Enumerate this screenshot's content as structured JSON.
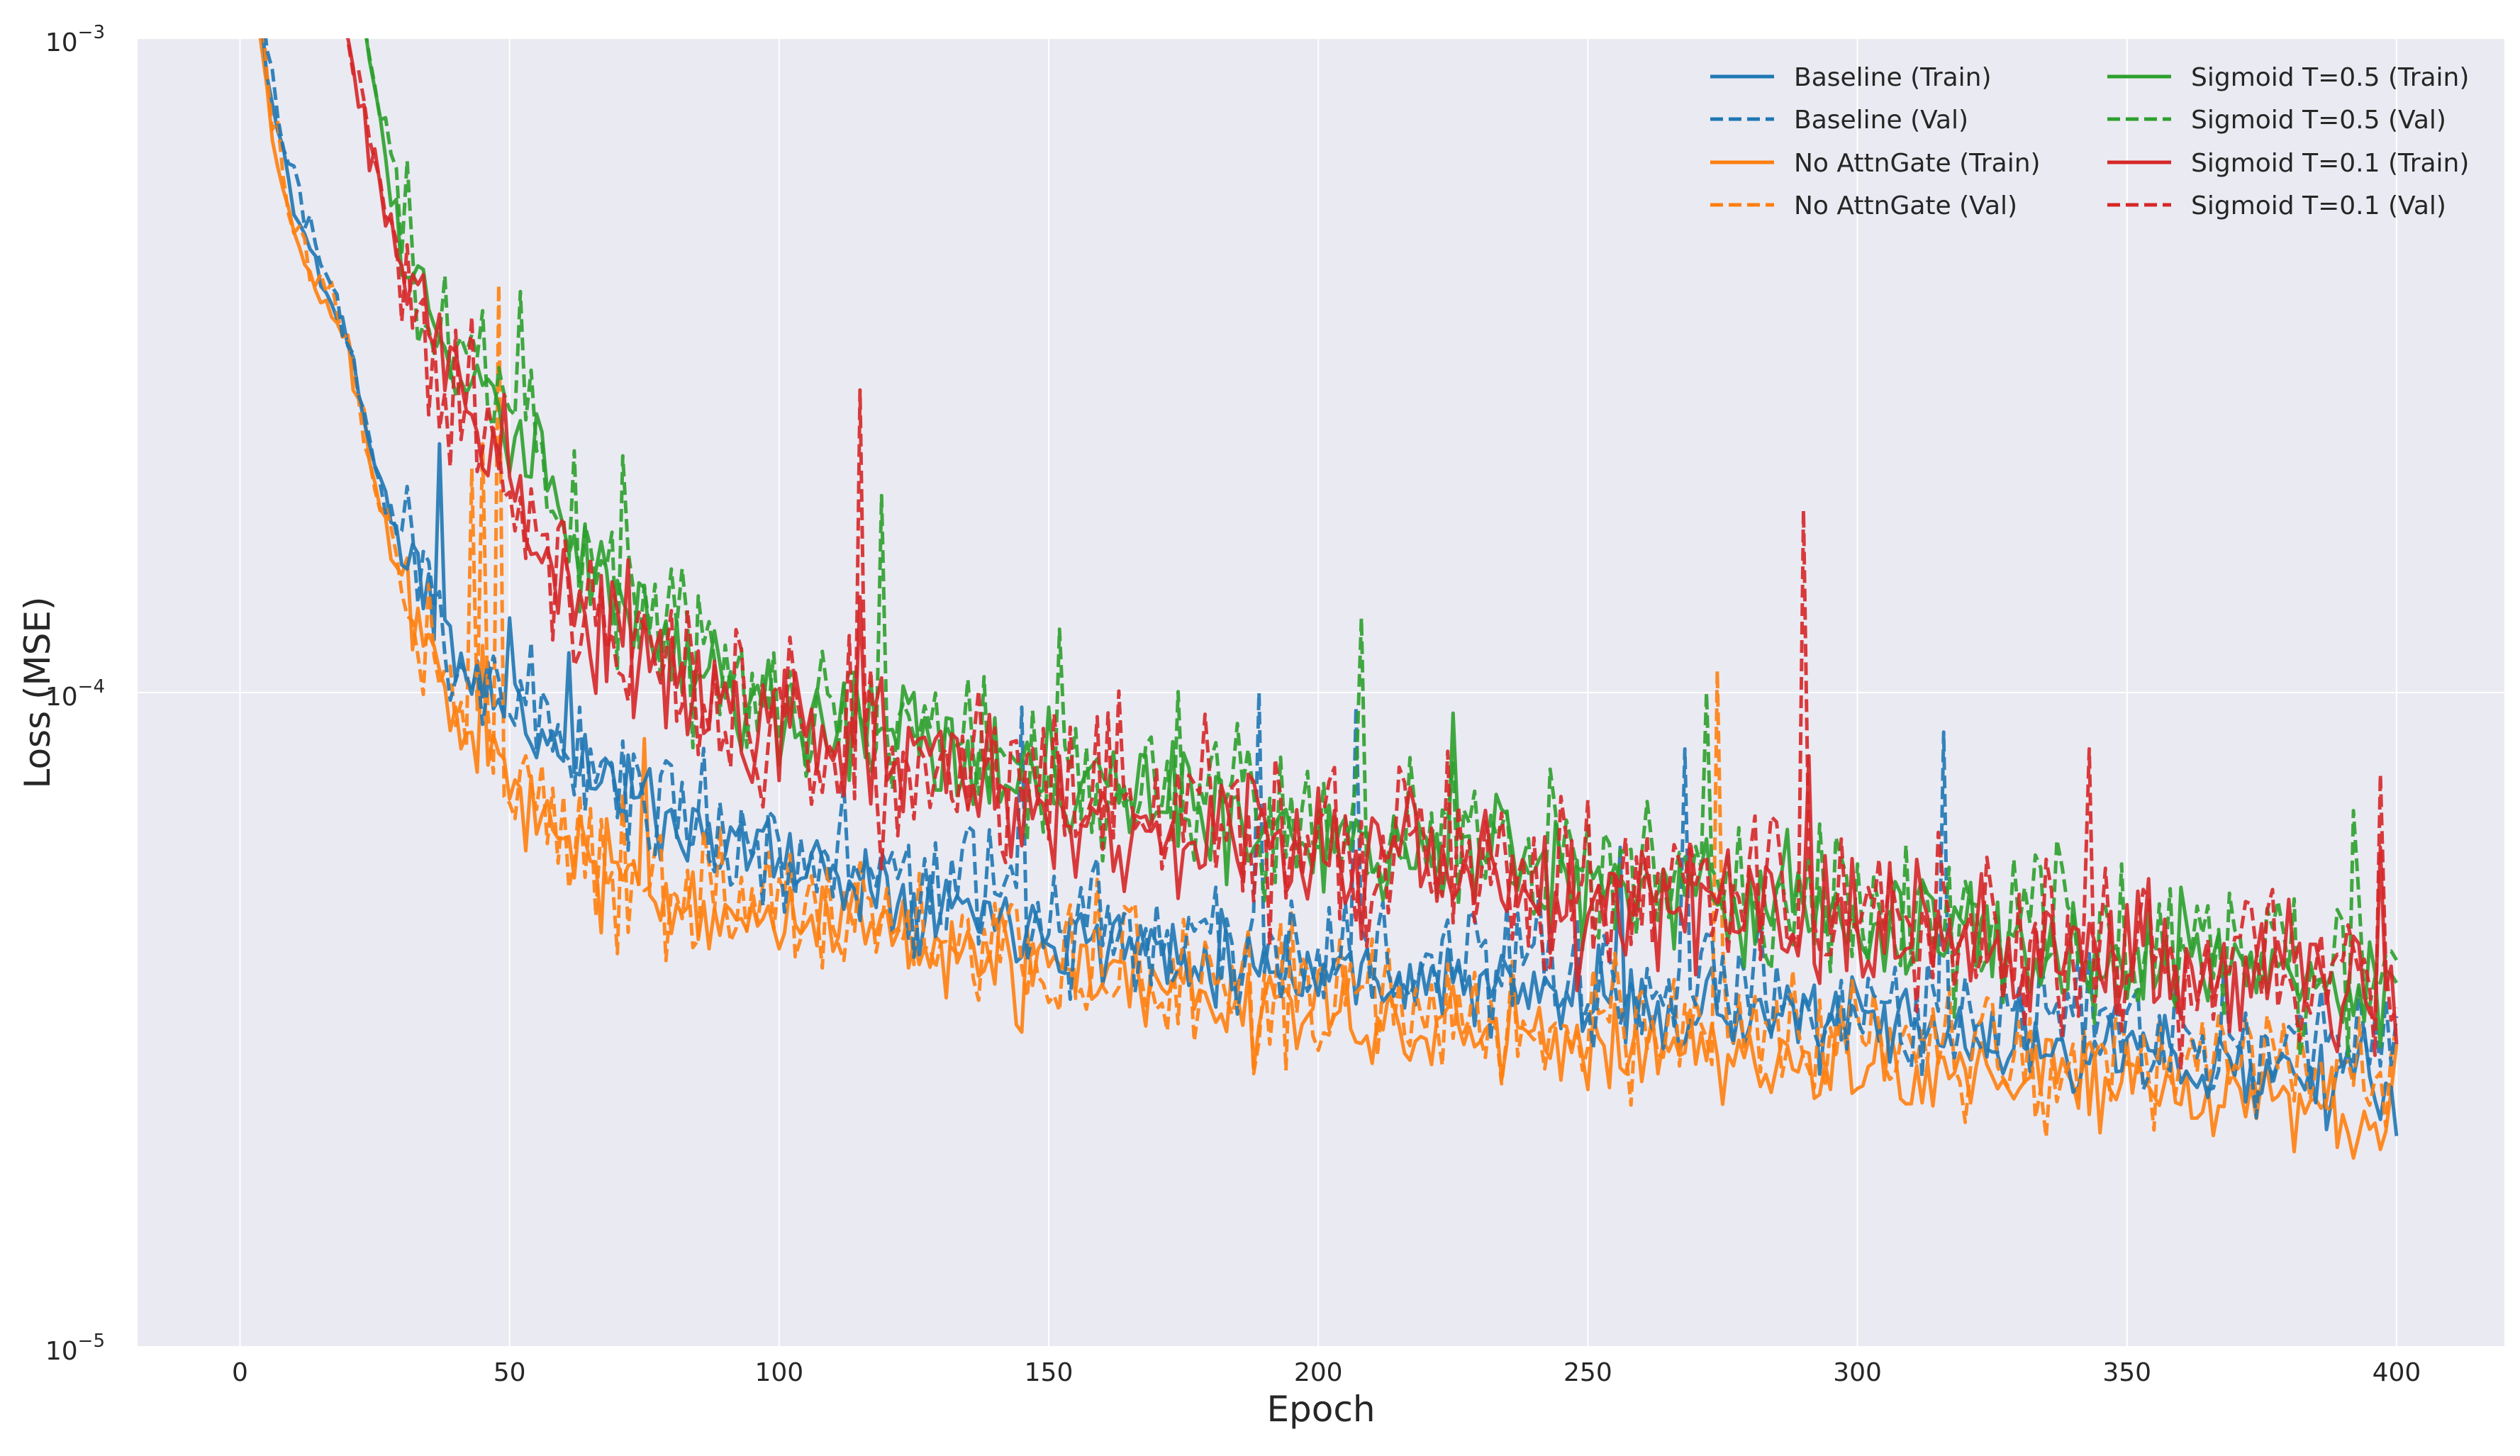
{
  "chart_data": {
    "type": "line",
    "title": "",
    "xlabel": "Epoch",
    "ylabel": "Loss (MSE)",
    "xlim": [
      -19,
      420
    ],
    "ylim": [
      1e-05,
      0.001
    ],
    "yscale": "log",
    "x_ticks": [
      0,
      50,
      100,
      150,
      200,
      250,
      300,
      350,
      400
    ],
    "y_ticks": [
      {
        "value": 1e-05,
        "base": "10",
        "exp": "−5"
      },
      {
        "value": 0.0001,
        "base": "10",
        "exp": "−4"
      },
      {
        "value": 0.001,
        "base": "10",
        "exp": "−3"
      }
    ],
    "grid": true,
    "legend": {
      "position": "top-right",
      "columns": 2
    },
    "background": "#eaeaf2",
    "series": [
      {
        "name": "Baseline (Train)",
        "color": "#1f77b4",
        "linestyle": "solid",
        "epochs": [
          0,
          400
        ],
        "anchors": [
          [
            0,
            0.0025
          ],
          [
            3,
            0.0012
          ],
          [
            6,
            0.0008
          ],
          [
            10,
            0.00055
          ],
          [
            15,
            0.00043
          ],
          [
            20,
            0.00035
          ],
          [
            25,
            0.00022
          ],
          [
            30,
            0.00017
          ],
          [
            35,
            0.000135
          ],
          [
            40,
            0.000112
          ],
          [
            50,
            9.5e-05
          ],
          [
            60,
            8.2e-05
          ],
          [
            70,
            7.2e-05
          ],
          [
            80,
            6.4e-05
          ],
          [
            100,
            5.6e-05
          ],
          [
            130,
            4.8e-05
          ],
          [
            160,
            4.2e-05
          ],
          [
            200,
            3.8e-05
          ],
          [
            250,
            3.4e-05
          ],
          [
            300,
            3.1e-05
          ],
          [
            350,
            2.8e-05
          ],
          [
            400,
            2.5e-05
          ]
        ],
        "noise": 0.06,
        "seed": 11,
        "spikes": [
          [
            37,
            0.00024
          ],
          [
            50,
            0.00013
          ],
          [
            61,
            0.000115
          ],
          [
            256,
            5.8e-05
          ]
        ],
        "end": 2.1e-05
      },
      {
        "name": "Baseline (Val)",
        "color": "#1f77b4",
        "linestyle": "dashed",
        "epochs": [
          0,
          400
        ],
        "anchors": [
          [
            0,
            0.0025
          ],
          [
            3,
            0.0013
          ],
          [
            6,
            0.00085
          ],
          [
            10,
            0.00058
          ],
          [
            15,
            0.00045
          ],
          [
            20,
            0.00036
          ],
          [
            25,
            0.00022
          ],
          [
            30,
            0.00017
          ],
          [
            35,
            0.00014
          ],
          [
            40,
            0.000115
          ],
          [
            50,
            0.0001
          ],
          [
            60,
            8.5e-05
          ],
          [
            70,
            7.4e-05
          ],
          [
            80,
            6.6e-05
          ],
          [
            100,
            5.8e-05
          ],
          [
            130,
            5e-05
          ],
          [
            160,
            4.4e-05
          ],
          [
            200,
            4e-05
          ],
          [
            250,
            3.6e-05
          ],
          [
            300,
            3.3e-05
          ],
          [
            350,
            3e-05
          ],
          [
            400,
            2.8e-05
          ]
        ],
        "noise": 0.1,
        "seed": 23,
        "spikes": [
          [
            32,
            0.000175
          ],
          [
            145,
            9.5e-05
          ],
          [
            189,
            0.0001
          ],
          [
            207,
            9.5e-05
          ],
          [
            268,
            8.2e-05
          ],
          [
            316,
            8.7e-05
          ]
        ],
        "end": 3.2e-05
      },
      {
        "name": "No AttnGate (Train)",
        "color": "#ff7f0e",
        "linestyle": "solid",
        "epochs": [
          0,
          400
        ],
        "anchors": [
          [
            0,
            0.0025
          ],
          [
            3,
            0.0011
          ],
          [
            6,
            0.0007
          ],
          [
            10,
            0.0005
          ],
          [
            15,
            0.0004
          ],
          [
            20,
            0.00034
          ],
          [
            25,
            0.00021
          ],
          [
            30,
            0.00015
          ],
          [
            35,
            0.00012
          ],
          [
            40,
            0.0001
          ],
          [
            50,
            7e-05
          ],
          [
            60,
            5.8e-05
          ],
          [
            70,
            5.2e-05
          ],
          [
            80,
            4.9e-05
          ],
          [
            100,
            4.5e-05
          ],
          [
            130,
            4e-05
          ],
          [
            160,
            3.6e-05
          ],
          [
            200,
            3.2e-05
          ],
          [
            250,
            2.9e-05
          ],
          [
            300,
            2.7e-05
          ],
          [
            350,
            2.5e-05
          ],
          [
            400,
            2.2e-05
          ]
        ],
        "noise": 0.07,
        "seed": 37,
        "spikes": [
          [
            45,
            0.000118
          ],
          [
            75,
            8.5e-05
          ]
        ],
        "end": 2.9e-05
      },
      {
        "name": "No AttnGate (Val)",
        "color": "#ff7f0e",
        "linestyle": "dashed",
        "epochs": [
          0,
          400
        ],
        "anchors": [
          [
            0,
            0.0025
          ],
          [
            3,
            0.0012
          ],
          [
            6,
            0.00075
          ],
          [
            10,
            0.00052
          ],
          [
            15,
            0.00041
          ],
          [
            20,
            0.00035
          ],
          [
            25,
            0.00021
          ],
          [
            30,
            0.00015
          ],
          [
            35,
            0.000125
          ],
          [
            40,
            0.000105
          ],
          [
            50,
            7.5e-05
          ],
          [
            60,
            6.2e-05
          ],
          [
            70,
            5.5e-05
          ],
          [
            80,
            5.1e-05
          ],
          [
            100,
            4.7e-05
          ],
          [
            130,
            4.2e-05
          ],
          [
            160,
            3.8e-05
          ],
          [
            200,
            3.4e-05
          ],
          [
            250,
            3.1e-05
          ],
          [
            300,
            2.9e-05
          ],
          [
            350,
            2.7e-05
          ],
          [
            400,
            2.5e-05
          ]
        ],
        "noise": 0.1,
        "seed": 53,
        "spikes": [
          [
            43,
            0.00022
          ],
          [
            45,
            0.00024
          ],
          [
            48,
            0.00042
          ],
          [
            274,
            0.000108
          ]
        ],
        "end": 3.1e-05
      },
      {
        "name": "Sigmoid T=0.5 (Train)",
        "color": "#2ca02c",
        "linestyle": "solid",
        "epochs": [
          20,
          400
        ],
        "anchors": [
          [
            20,
            0.0015
          ],
          [
            24,
            0.0009
          ],
          [
            28,
            0.0006
          ],
          [
            33,
            0.00042
          ],
          [
            40,
            0.00032
          ],
          [
            50,
            0.00025
          ],
          [
            60,
            0.00018
          ],
          [
            70,
            0.00014
          ],
          [
            80,
            0.00011
          ],
          [
            100,
            9.2e-05
          ],
          [
            130,
            8e-05
          ],
          [
            160,
            7e-05
          ],
          [
            200,
            6.1e-05
          ],
          [
            250,
            5.3e-05
          ],
          [
            300,
            4.6e-05
          ],
          [
            350,
            4e-05
          ],
          [
            400,
            3.6e-05
          ]
        ],
        "noise": 0.08,
        "seed": 71,
        "spikes": [
          [
            125,
            0.0001
          ],
          [
            150,
            9.5e-05
          ],
          [
            225,
            9.3e-05
          ]
        ],
        "end": 3.6e-05
      },
      {
        "name": "Sigmoid T=0.5 (Val)",
        "color": "#2ca02c",
        "linestyle": "dashed",
        "epochs": [
          20,
          400
        ],
        "anchors": [
          [
            20,
            0.0015
          ],
          [
            24,
            0.00095
          ],
          [
            28,
            0.00065
          ],
          [
            33,
            0.00045
          ],
          [
            40,
            0.00034
          ],
          [
            50,
            0.00028
          ],
          [
            60,
            0.0002
          ],
          [
            70,
            0.00015
          ],
          [
            80,
            0.00012
          ],
          [
            100,
            0.0001
          ],
          [
            130,
            8.5e-05
          ],
          [
            160,
            7.5e-05
          ],
          [
            200,
            6.5e-05
          ],
          [
            250,
            5.5e-05
          ],
          [
            300,
            4.8e-05
          ],
          [
            350,
            4.2e-05
          ],
          [
            400,
            3.8e-05
          ]
        ],
        "noise": 0.12,
        "seed": 89,
        "spikes": [
          [
            31,
            0.00065
          ],
          [
            52,
            0.00041
          ],
          [
            71,
            0.00023
          ],
          [
            119,
            0.0002
          ],
          [
            152,
            0.000125
          ],
          [
            208,
            0.00013
          ],
          [
            272,
            0.0001
          ],
          [
            392,
            6.6e-05
          ]
        ],
        "end": 3.9e-05
      },
      {
        "name": "Sigmoid T=0.1 (Train)",
        "color": "#d62728",
        "linestyle": "solid",
        "epochs": [
          15,
          400
        ],
        "anchors": [
          [
            15,
            0.0015
          ],
          [
            18,
            0.0012
          ],
          [
            22,
            0.0008
          ],
          [
            27,
            0.00055
          ],
          [
            33,
            0.00038
          ],
          [
            40,
            0.0003
          ],
          [
            50,
            0.00021
          ],
          [
            60,
            0.00015
          ],
          [
            70,
            0.00012
          ],
          [
            80,
            0.0001
          ],
          [
            100,
            8.8e-05
          ],
          [
            130,
            7.5e-05
          ],
          [
            160,
            6.6e-05
          ],
          [
            200,
            5.8e-05
          ],
          [
            250,
            5e-05
          ],
          [
            300,
            4.4e-05
          ],
          [
            350,
            3.9e-05
          ],
          [
            400,
            3.5e-05
          ]
        ],
        "noise": 0.1,
        "seed": 97,
        "spikes": [
          [
            115,
            0.00014
          ],
          [
            291,
            8e-05
          ],
          [
            397,
            5.8e-05
          ]
        ],
        "end": 2.9e-05
      },
      {
        "name": "Sigmoid T=0.1 (Val)",
        "color": "#d62728",
        "linestyle": "dashed",
        "epochs": [
          15,
          400
        ],
        "anchors": [
          [
            15,
            0.0015
          ],
          [
            18,
            0.0012
          ],
          [
            22,
            0.0008
          ],
          [
            27,
            0.00055
          ],
          [
            33,
            0.00038
          ],
          [
            40,
            0.0003
          ],
          [
            50,
            0.00021
          ],
          [
            60,
            0.00015
          ],
          [
            70,
            0.00012
          ],
          [
            80,
            0.000105
          ],
          [
            100,
            9e-05
          ],
          [
            130,
            7.8e-05
          ],
          [
            160,
            6.8e-05
          ],
          [
            200,
            6e-05
          ],
          [
            250,
            5.2e-05
          ],
          [
            300,
            4.6e-05
          ],
          [
            350,
            4e-05
          ],
          [
            400,
            3.6e-05
          ]
        ],
        "noise": 0.13,
        "seed": 113,
        "spikes": [
          [
            115,
            0.00029
          ],
          [
            290,
            0.00019
          ],
          [
            343,
            8.2e-05
          ],
          [
            397,
            7.5e-05
          ]
        ],
        "end": 3.3e-05
      }
    ]
  }
}
